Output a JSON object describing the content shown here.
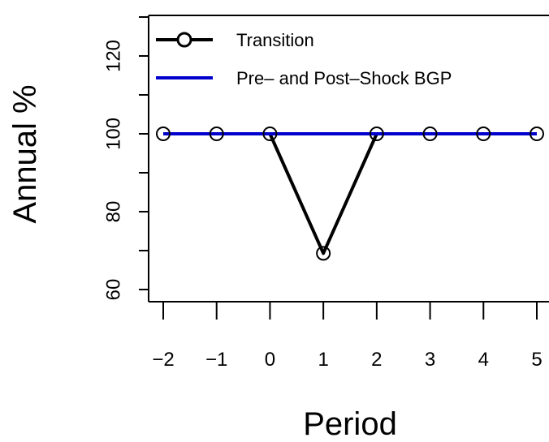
{
  "chart_data": {
    "type": "line",
    "title": "",
    "xlabel": "Period",
    "ylabel": "Annual %",
    "x": [
      -2,
      -1,
      0,
      1,
      2,
      3,
      4,
      5
    ],
    "x_tick_labels": [
      "−2",
      "−1",
      "0",
      "1",
      "2",
      "3",
      "4",
      "5"
    ],
    "xlim": [
      -2.3,
      5.3
    ],
    "ylim": [
      57.5,
      130
    ],
    "y_ticks": [
      60,
      80,
      100,
      120
    ],
    "y_minor_ticks": [
      70,
      90,
      110,
      130
    ],
    "grid": false,
    "legend_position": "top-left",
    "series": [
      {
        "name": "Transition",
        "values": [
          100,
          100,
          100,
          69.3,
          100,
          100,
          100,
          100
        ],
        "color": "#000000",
        "marker": "open-circle"
      },
      {
        "name": "Pre– and Post–Shock BGP",
        "values": [
          100,
          100,
          100,
          100,
          100,
          100,
          100,
          100
        ],
        "color": "#0000cc",
        "marker": "none"
      }
    ]
  }
}
